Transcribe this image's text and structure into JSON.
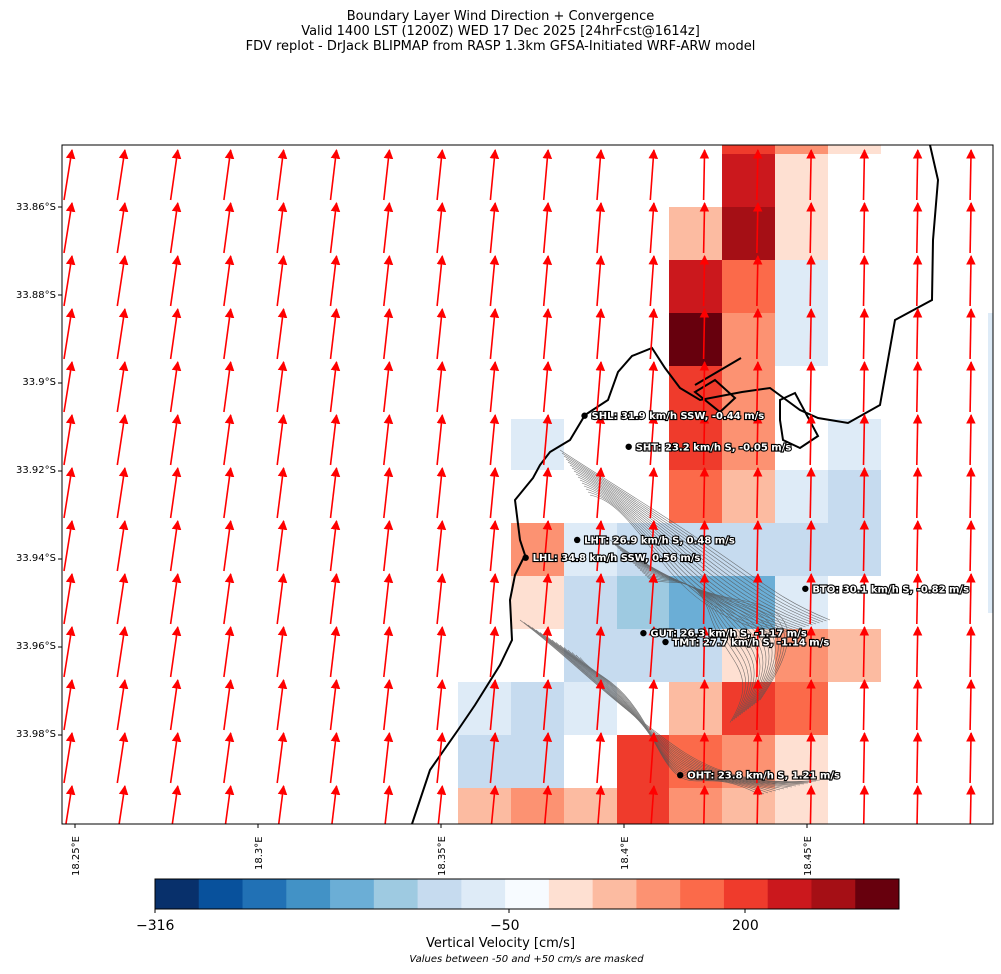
{
  "title": {
    "line1": "Boundary Layer Wind Direction + Convergence",
    "line2": "Valid 1400 LST (1200Z) WED 17 Dec 2025 [24hrFcst@1614z]",
    "line3": "FDV replot - DrJack BLIPMAP from RASP 1.3km GFSA-Initiated WRF-ARW model"
  },
  "axes": {
    "y_ticks": [
      "33.86°S",
      "33.88°S",
      "33.9°S",
      "33.92°S",
      "33.94°S",
      "33.96°S",
      "33.98°S"
    ],
    "x_ticks": [
      "18.25°E",
      "18.3°E",
      "18.35°E",
      "18.4°E",
      "18.45°E"
    ],
    "lat_range": [
      -34.0,
      -33.847
    ],
    "lon_range": [
      18.246,
      18.499
    ]
  },
  "stations": [
    {
      "id": "SHL",
      "label": "SHL: 31.9 km/h SSW, -0.44 m/s",
      "lon": 18.388,
      "lat": -33.908
    },
    {
      "id": "SHT",
      "label": "SHT: 23.2 km/h S, -0.05 m/s",
      "lon": 18.4,
      "lat": -33.915
    },
    {
      "id": "LHT",
      "label": "LHT: 26.9 km/h S, 0.48 m/s",
      "lon": 18.386,
      "lat": -33.936
    },
    {
      "id": "LHL",
      "label": "LHL: 34.8 km/h SSW, 0.56 m/s",
      "lon": 18.372,
      "lat": -33.94
    },
    {
      "id": "BTO",
      "label": "BTO: 30.1 km/h S, -0.82 m/s",
      "lon": 18.448,
      "lat": -33.947
    },
    {
      "id": "GUT",
      "label": "GUT: 26.3 km/h S, -1.17 m/s",
      "lon": 18.404,
      "lat": -33.957
    },
    {
      "id": "TMT",
      "label": "TMT: 27.7 km/h S, -1.14 m/s",
      "lon": 18.41,
      "lat": -33.959
    },
    {
      "id": "OHT",
      "label": "OHT: 23.8 km/h S, 1.21 m/s",
      "lon": 18.414,
      "lat": -33.989
    }
  ],
  "colorbar": {
    "min_label": "−316",
    "mid_label": "−50",
    "max_label": "200",
    "label": "Vertical Velocity [cm/s]",
    "note": "Values between -50 and +50 cm/s are masked",
    "colors": [
      "#08306b",
      "#08519c",
      "#2171b5",
      "#4292c6",
      "#6baed6",
      "#9ecae1",
      "#c6dbef",
      "#deebf7",
      "#f7fbff",
      "#fee0d2",
      "#fcbba1",
      "#fc9272",
      "#fb6a4a",
      "#ef3b2c",
      "#cb181d",
      "#a50f15",
      "#67000d"
    ]
  },
  "colors": {
    "wind_arrow": "#ff0000",
    "coastline": "#000000",
    "contour": "#555555"
  }
}
